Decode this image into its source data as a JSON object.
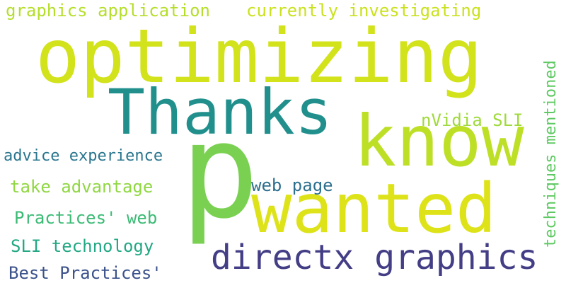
{
  "words": {
    "p": {
      "text": "p",
      "color": "#7ad151"
    },
    "optimizing": {
      "text": "optimizing",
      "color": "#d2e21b"
    },
    "wanted": {
      "text": "wanted",
      "color": "#dde318"
    },
    "know": {
      "text": "know",
      "color": "#bddf26"
    },
    "thanks": {
      "text": "Thanks",
      "color": "#21908d"
    },
    "directx_graphics": {
      "text": "directx graphics",
      "color": "#433e85"
    },
    "graphics_application": {
      "text": "graphics application",
      "color": "#b5de2b"
    },
    "currently_investigating": {
      "text": "currently investigating",
      "color": "#cae11f"
    },
    "techniques_mentioned": {
      "text": "techniques mentioned",
      "color": "#5ec962"
    },
    "nvidia_sli": {
      "text": "nVidia SLI",
      "color": "#9fda3a"
    },
    "advice_experience": {
      "text": "advice experience",
      "color": "#2a768e"
    },
    "take_advantage": {
      "text": "take advantage",
      "color": "#90d743"
    },
    "web_page": {
      "text": "web page",
      "color": "#2d708e"
    },
    "practices_web": {
      "text": "Practices' web",
      "color": "#3bbb75"
    },
    "sli_technology": {
      "text": "SLI technology",
      "color": "#22a884"
    },
    "best_practices": {
      "text": "Best Practices'",
      "color": "#3b528b"
    }
  }
}
